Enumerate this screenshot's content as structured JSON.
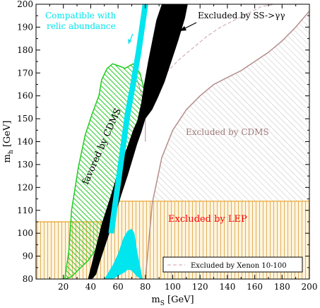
{
  "chart_data": {
    "type": "area",
    "xlabel_main": "m",
    "xlabel_sub": "S",
    "xlabel_unit": "[GeV]",
    "ylabel_main": "m",
    "ylabel_sub": "h",
    "ylabel_unit": "[GeV]",
    "xlim": [
      0,
      200
    ],
    "ylim": [
      80,
      200
    ],
    "x_ticks": [
      20,
      40,
      60,
      80,
      100,
      120,
      140,
      160,
      180,
      200
    ],
    "y_ticks": [
      80,
      90,
      100,
      110,
      120,
      130,
      140,
      150,
      160,
      170,
      180,
      190,
      200
    ],
    "grid": false,
    "colors": {
      "black_band": "#000000",
      "relic": "#00e5ee",
      "cdms_favored": "#22cc22",
      "cdms_excluded_hatch": "#bfbfbf",
      "cdms_boundary": "#b58c8c",
      "lep_fill": "#fff4dc",
      "lep_hatch": "#e0b060",
      "lep_line": "#e8a020",
      "xenon_line": "#c8a0a8",
      "lep_label": "#ff0000",
      "cdms_label": "#a07878",
      "relic_label": "#00e5ee"
    },
    "annotations": {
      "relic_line1": "Compatible with",
      "relic_line2": "relic abundance",
      "ss_gamma": "Excluded by SS->γγ",
      "favored": "favored by CDMS",
      "cdms_excluded": "Excluded by CDMS",
      "lep": "Excluded by LEP",
      "legend_xenon": "Excluded by Xenon 10-100"
    },
    "series": [
      {
        "role": "black-band",
        "x": [
          38,
          43,
          48,
          55,
          61,
          67,
          71,
          74,
          77,
          79,
          82,
          85,
          88,
          92,
          96,
          100,
          105,
          109,
          111,
          109,
          104,
          99,
          94,
          89,
          85,
          80,
          77,
          74,
          71,
          67,
          62,
          57,
          52,
          47,
          44,
          41,
          38
        ],
        "y": [
          80,
          92,
          104,
          117,
          129,
          138,
          145,
          149,
          157,
          165,
          175,
          184,
          193,
          200,
          200,
          200,
          200,
          200,
          200,
          194,
          184,
          175,
          166,
          159,
          154,
          150,
          144,
          139,
          133,
          125,
          116,
          106,
          97,
          88,
          82,
          80,
          80
        ]
      },
      {
        "role": "relic-band",
        "x": [
          55,
          58,
          61,
          64,
          67,
          71,
          75,
          80
        ],
        "y": [
          100,
          113,
          126,
          139,
          152,
          165,
          179,
          200
        ]
      },
      {
        "role": "relic-blob",
        "x": [
          50,
          52,
          56,
          60,
          64,
          67,
          70,
          72,
          73,
          74,
          76,
          78,
          77,
          74,
          71,
          69,
          67,
          65,
          62,
          59,
          56,
          53,
          50
        ],
        "y": [
          80,
          82,
          86,
          91,
          98,
          101,
          102,
          100,
          96,
          92,
          86,
          80,
          80,
          81,
          83,
          84,
          84,
          83,
          82,
          81,
          80,
          80,
          80
        ]
      },
      {
        "role": "cdms-favored",
        "x": [
          21,
          24,
          26,
          31,
          36,
          41,
          46,
          48,
          52,
          56,
          61,
          65,
          71,
          76,
          79,
          80,
          78,
          74,
          70,
          65,
          60,
          55,
          50,
          44,
          38,
          31,
          26,
          21,
          19,
          18,
          18,
          20,
          21
        ],
        "y": [
          80,
          92,
          110,
          129,
          143,
          152,
          160,
          167,
          172,
          174,
          173,
          172,
          174,
          170,
          163,
          157,
          151,
          144,
          136,
          127,
          118,
          108,
          99,
          93,
          88,
          84,
          81,
          80,
          79,
          80,
          80,
          80,
          80
        ]
      },
      {
        "role": "cdms-excluded-boundary",
        "x": [
          80,
          85,
          92,
          100,
          110,
          120,
          130,
          140,
          150,
          160,
          170,
          180,
          190,
          200
        ],
        "y": [
          80,
          113,
          133,
          145,
          154,
          160,
          165,
          168,
          171,
          175,
          179,
          184,
          190,
          197
        ]
      },
      {
        "role": "cdms-excluded-upper-left",
        "x": [
          80,
          80,
          76,
          74
        ],
        "y": [
          140,
          155,
          163,
          167
        ]
      },
      {
        "role": "xenon-line",
        "x": [
          75,
          85,
          95,
          105,
          115,
          125,
          135,
          145,
          155,
          165,
          175,
          185,
          195,
          200
        ],
        "y": [
          158,
          165,
          170,
          176,
          181,
          186,
          190,
          193,
          196,
          199,
          200,
          200,
          200,
          200
        ]
      },
      {
        "role": "lep-boundary",
        "x": [
          0,
          48,
          48,
          55,
          55,
          200
        ],
        "y": [
          105,
          105,
          104.5,
          104.5,
          114,
          114
        ]
      }
    ]
  }
}
